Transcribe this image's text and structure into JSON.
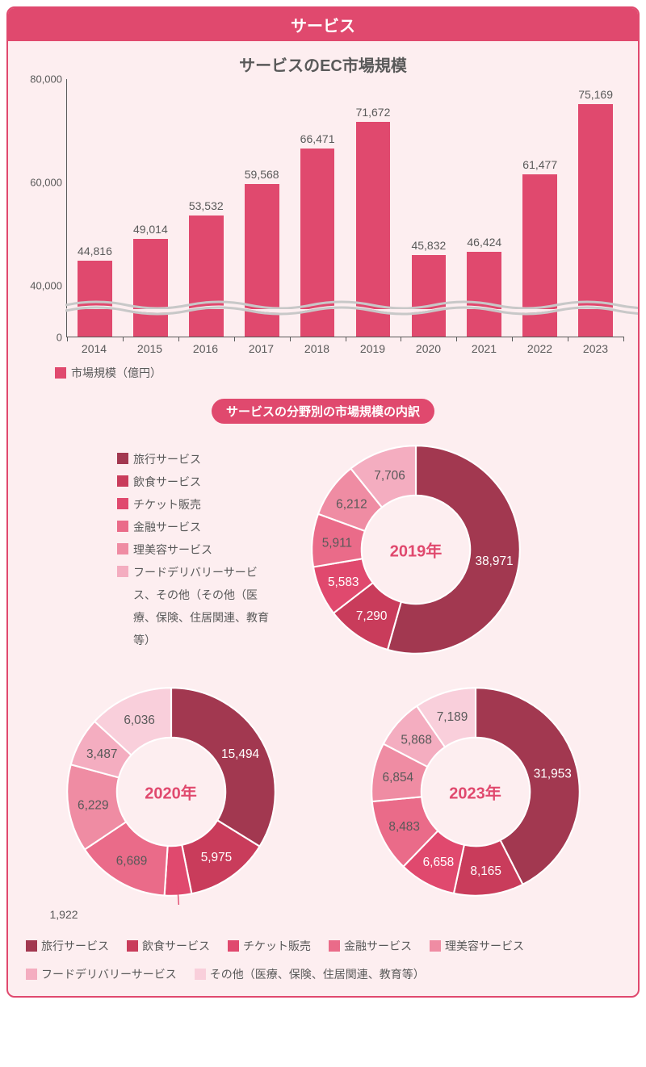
{
  "card": {
    "title": "サービス",
    "background": "#fdeef0",
    "border": "#e0496e"
  },
  "barChart": {
    "type": "bar",
    "title": "サービスのEC市場規模",
    "legend_label": "市場規模（億円）",
    "bar_color": "#e0496e",
    "text_color": "#595959",
    "ylim_display": [
      30000,
      80000
    ],
    "ytick_labels": [
      "0",
      "40,000",
      "60,000",
      "80,000"
    ],
    "ytick_positions_pct": [
      100,
      80,
      40,
      0
    ],
    "axis_break": true,
    "categories": [
      "2014",
      "2015",
      "2016",
      "2017",
      "2018",
      "2019",
      "2020",
      "2021",
      "2022",
      "2023"
    ],
    "values": [
      44816,
      49014,
      53532,
      59568,
      66471,
      71672,
      45832,
      46424,
      61477,
      75169
    ],
    "value_labels": [
      "44,816",
      "49,014",
      "53,532",
      "59,568",
      "66,471",
      "71,672",
      "45,832",
      "46,424",
      "61,477",
      "75,169"
    ],
    "bar_heights_pct": [
      29.6,
      38.0,
      47.1,
      59.1,
      72.9,
      83.3,
      31.7,
      32.8,
      62.9,
      90.3
    ]
  },
  "donutSection": {
    "pill_label": "サービスの分野別の市場規模の内訳",
    "palette": [
      "#a23850",
      "#c93c5b",
      "#e0496e",
      "#ea6b89",
      "#ef8ca3",
      "#f4adc0",
      "#f9cfdb"
    ],
    "legend2019": [
      "旅行サービス",
      "飲食サービス",
      "チケット販売",
      "金融サービス",
      "理美容サービス",
      "フードデリバリーサービス、その他（その他（医療、保険、住居関連、教育等）"
    ],
    "legendBottom": [
      "旅行サービス",
      "飲食サービス",
      "チケット販売",
      "金融サービス",
      "理美容サービス",
      "フードデリバリーサービス",
      "その他（医療、保険、住居関連、教育等）"
    ],
    "donuts": {
      "y2019": {
        "center_label": "2019年",
        "values": [
          38971,
          7290,
          5583,
          5911,
          6212,
          7706
        ],
        "labels": [
          "38,971",
          "7,290",
          "5,583",
          "5,911",
          "6,212",
          "7,706"
        ],
        "colors": [
          "#a23850",
          "#c93c5b",
          "#e0496e",
          "#ea6b89",
          "#ef8ca3",
          "#f4adc0"
        ]
      },
      "y2020": {
        "center_label": "2020年",
        "values": [
          15494,
          5975,
          1922,
          6689,
          6229,
          3487,
          6036
        ],
        "labels": [
          "15,494",
          "5,975",
          "1,922",
          "6,689",
          "6,229",
          "3,487",
          "6,036"
        ],
        "colors": [
          "#a23850",
          "#c93c5b",
          "#e0496e",
          "#ea6b89",
          "#ef8ca3",
          "#f4adc0",
          "#f9cfdb"
        ],
        "callout": {
          "index": 2,
          "label": "1,922"
        }
      },
      "y2023": {
        "center_label": "2023年",
        "values": [
          31953,
          8165,
          6658,
          8483,
          6854,
          5868,
          7189
        ],
        "labels": [
          "31,953",
          "8,165",
          "6,658",
          "8,483",
          "6,854",
          "5,868",
          "7,189"
        ],
        "colors": [
          "#a23850",
          "#c93c5b",
          "#e0496e",
          "#ea6b89",
          "#ef8ca3",
          "#f4adc0",
          "#f9cfdb"
        ]
      }
    }
  }
}
